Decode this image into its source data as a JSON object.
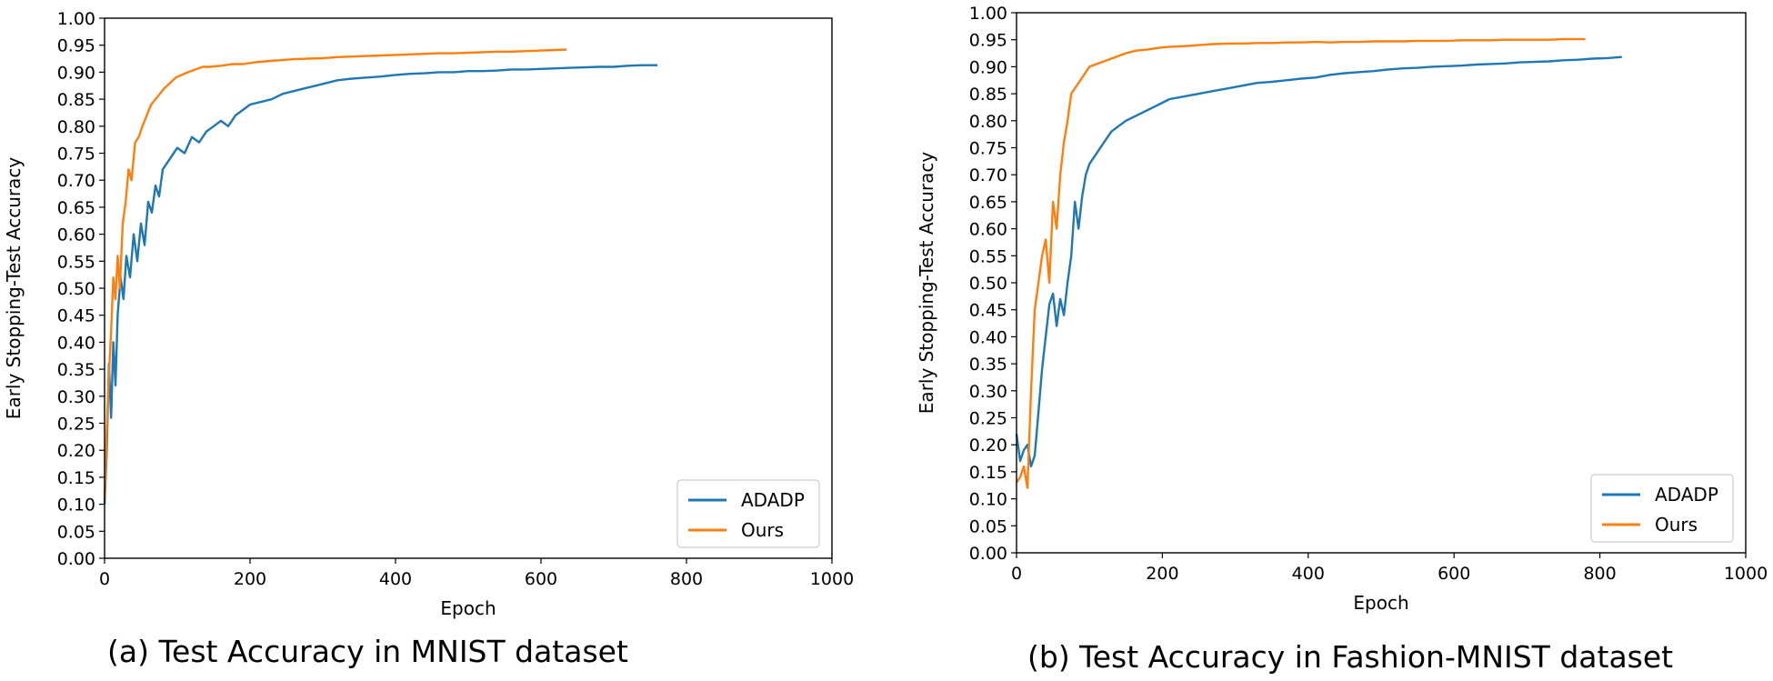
{
  "colors": {
    "adadp": "#1f77b4",
    "ours": "#ff7f0e",
    "axis": "#000000"
  },
  "chart_data": [
    {
      "type": "line",
      "title": "",
      "caption": "(a) Test Accuracy in MNIST dataset",
      "xlabel": "Epoch",
      "ylabel": "Early Stopping-Test Accuracy",
      "xlim": [
        0,
        1000
      ],
      "ylim": [
        0,
        1.0
      ],
      "xticks": [
        "0",
        "200",
        "400",
        "600",
        "800",
        "1000"
      ],
      "yticks": [
        "0.00",
        "0.05",
        "0.10",
        "0.15",
        "0.20",
        "0.25",
        "0.30",
        "0.35",
        "0.40",
        "0.45",
        "0.50",
        "0.55",
        "0.60",
        "0.65",
        "0.70",
        "0.75",
        "0.80",
        "0.85",
        "0.90",
        "0.95",
        "1.00"
      ],
      "legend": {
        "position": "lower-right",
        "entries": [
          "ADADP",
          "Ours"
        ]
      },
      "series": [
        {
          "name": "ADADP",
          "color": "#1f77b4",
          "x": [
            0,
            3,
            6,
            9,
            12,
            15,
            18,
            22,
            26,
            30,
            35,
            40,
            45,
            50,
            55,
            60,
            65,
            70,
            75,
            80,
            90,
            100,
            110,
            120,
            130,
            140,
            150,
            160,
            170,
            180,
            190,
            200,
            215,
            230,
            245,
            260,
            275,
            290,
            305,
            320,
            340,
            360,
            380,
            400,
            420,
            440,
            460,
            480,
            500,
            520,
            540,
            560,
            580,
            600,
            620,
            640,
            660,
            680,
            700,
            720,
            740,
            760
          ],
          "y": [
            0.1,
            0.2,
            0.36,
            0.26,
            0.4,
            0.32,
            0.45,
            0.52,
            0.48,
            0.56,
            0.52,
            0.6,
            0.55,
            0.62,
            0.58,
            0.66,
            0.64,
            0.69,
            0.67,
            0.72,
            0.74,
            0.76,
            0.75,
            0.78,
            0.77,
            0.79,
            0.8,
            0.81,
            0.8,
            0.82,
            0.83,
            0.84,
            0.845,
            0.85,
            0.86,
            0.865,
            0.87,
            0.875,
            0.88,
            0.885,
            0.888,
            0.89,
            0.892,
            0.895,
            0.897,
            0.898,
            0.9,
            0.9,
            0.902,
            0.902,
            0.903,
            0.905,
            0.905,
            0.906,
            0.907,
            0.908,
            0.909,
            0.91,
            0.91,
            0.912,
            0.913,
            0.913
          ]
        },
        {
          "name": "Ours",
          "color": "#ff7f0e",
          "x": [
            0,
            3,
            6,
            9,
            12,
            15,
            18,
            21,
            25,
            29,
            33,
            37,
            42,
            47,
            52,
            58,
            64,
            70,
            76,
            82,
            90,
            98,
            106,
            115,
            125,
            135,
            145,
            160,
            175,
            190,
            205,
            220,
            240,
            260,
            280,
            300,
            320,
            340,
            360,
            380,
            400,
            420,
            440,
            460,
            480,
            500,
            520,
            540,
            560,
            580,
            600,
            620,
            635
          ],
          "y": [
            0.11,
            0.24,
            0.34,
            0.42,
            0.52,
            0.48,
            0.56,
            0.5,
            0.62,
            0.66,
            0.72,
            0.7,
            0.77,
            0.78,
            0.8,
            0.82,
            0.84,
            0.85,
            0.86,
            0.87,
            0.88,
            0.89,
            0.895,
            0.9,
            0.905,
            0.91,
            0.91,
            0.912,
            0.915,
            0.915,
            0.918,
            0.92,
            0.922,
            0.924,
            0.925,
            0.926,
            0.928,
            0.929,
            0.93,
            0.931,
            0.932,
            0.933,
            0.934,
            0.935,
            0.935,
            0.936,
            0.937,
            0.938,
            0.938,
            0.939,
            0.94,
            0.941,
            0.942
          ]
        }
      ]
    },
    {
      "type": "line",
      "title": "",
      "caption": "(b) Test Accuracy in Fashion-MNIST dataset",
      "xlabel": "Epoch",
      "ylabel": "Early Stopping-Test Accuracy",
      "xlim": [
        0,
        1000
      ],
      "ylim": [
        0,
        1.0
      ],
      "xticks": [
        "0",
        "200",
        "400",
        "600",
        "800",
        "1000"
      ],
      "yticks": [
        "0.00",
        "0.05",
        "0.10",
        "0.15",
        "0.20",
        "0.25",
        "0.30",
        "0.35",
        "0.40",
        "0.45",
        "0.50",
        "0.55",
        "0.60",
        "0.65",
        "0.70",
        "0.75",
        "0.80",
        "0.85",
        "0.90",
        "0.95",
        "1.00"
      ],
      "legend": {
        "position": "lower-right",
        "entries": [
          "ADADP",
          "Ours"
        ]
      },
      "series": [
        {
          "name": "ADADP",
          "color": "#1f77b4",
          "x": [
            0,
            5,
            10,
            15,
            20,
            25,
            30,
            35,
            40,
            45,
            50,
            55,
            60,
            65,
            70,
            75,
            80,
            85,
            90,
            95,
            100,
            110,
            120,
            130,
            140,
            150,
            165,
            180,
            195,
            210,
            230,
            250,
            270,
            290,
            310,
            330,
            350,
            370,
            390,
            410,
            430,
            450,
            470,
            490,
            510,
            530,
            550,
            570,
            590,
            610,
            630,
            650,
            670,
            690,
            710,
            730,
            750,
            770,
            790,
            810,
            830
          ],
          "y": [
            0.22,
            0.17,
            0.19,
            0.2,
            0.16,
            0.18,
            0.26,
            0.34,
            0.4,
            0.46,
            0.48,
            0.42,
            0.47,
            0.44,
            0.5,
            0.55,
            0.65,
            0.6,
            0.66,
            0.7,
            0.72,
            0.74,
            0.76,
            0.78,
            0.79,
            0.8,
            0.81,
            0.82,
            0.83,
            0.84,
            0.845,
            0.85,
            0.855,
            0.86,
            0.865,
            0.87,
            0.872,
            0.875,
            0.878,
            0.88,
            0.885,
            0.888,
            0.89,
            0.892,
            0.895,
            0.897,
            0.898,
            0.9,
            0.901,
            0.902,
            0.904,
            0.905,
            0.906,
            0.908,
            0.909,
            0.91,
            0.912,
            0.913,
            0.915,
            0.916,
            0.918
          ]
        },
        {
          "name": "Ours",
          "color": "#ff7f0e",
          "x": [
            0,
            5,
            10,
            15,
            20,
            25,
            30,
            35,
            40,
            45,
            50,
            55,
            60,
            65,
            70,
            75,
            80,
            85,
            90,
            95,
            100,
            110,
            120,
            130,
            140,
            150,
            165,
            180,
            195,
            210,
            230,
            250,
            270,
            290,
            310,
            330,
            350,
            370,
            390,
            410,
            430,
            450,
            470,
            490,
            510,
            530,
            550,
            570,
            590,
            610,
            630,
            650,
            670,
            690,
            710,
            730,
            750,
            770,
            780
          ],
          "y": [
            0.13,
            0.14,
            0.16,
            0.12,
            0.3,
            0.45,
            0.5,
            0.55,
            0.58,
            0.5,
            0.65,
            0.6,
            0.7,
            0.76,
            0.8,
            0.85,
            0.86,
            0.87,
            0.88,
            0.89,
            0.9,
            0.905,
            0.91,
            0.915,
            0.92,
            0.925,
            0.93,
            0.932,
            0.935,
            0.937,
            0.938,
            0.94,
            0.942,
            0.943,
            0.943,
            0.944,
            0.944,
            0.945,
            0.945,
            0.946,
            0.945,
            0.946,
            0.946,
            0.947,
            0.947,
            0.947,
            0.948,
            0.948,
            0.948,
            0.949,
            0.949,
            0.949,
            0.95,
            0.95,
            0.95,
            0.95,
            0.951,
            0.951,
            0.951
          ]
        }
      ]
    }
  ]
}
